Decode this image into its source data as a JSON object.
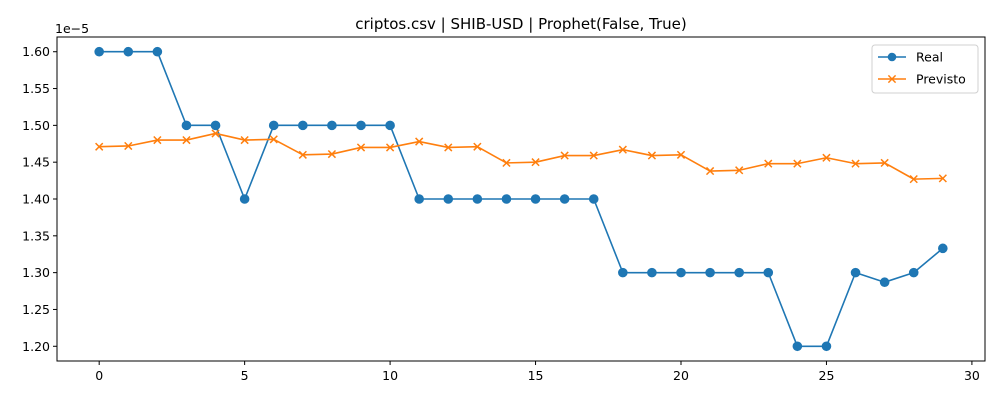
{
  "chart_data": {
    "type": "line",
    "title": "criptos.csv | SHIB-USD | Prophet(False, True)",
    "xlabel": "",
    "ylabel": "",
    "offset_label": "1e−5",
    "xlim": [
      -1.45,
      30.45
    ],
    "ylim": [
      1.18,
      1.62
    ],
    "x_ticks": [
      0,
      5,
      10,
      15,
      20,
      25,
      30
    ],
    "y_ticks": [
      1.2,
      1.25,
      1.3,
      1.35,
      1.4,
      1.45,
      1.5,
      1.55,
      1.6
    ],
    "y_tick_labels": [
      "1.20",
      "1.25",
      "1.30",
      "1.35",
      "1.40",
      "1.45",
      "1.50",
      "1.55",
      "1.60"
    ],
    "legend_position": "top-right",
    "grid": false,
    "x": [
      0,
      1,
      2,
      3,
      4,
      5,
      6,
      7,
      8,
      9,
      10,
      11,
      12,
      13,
      14,
      15,
      16,
      17,
      18,
      19,
      20,
      21,
      22,
      23,
      24,
      25,
      26,
      27,
      28,
      29
    ],
    "series": [
      {
        "name": "Real",
        "color": "#1f77b4",
        "marker": "circle",
        "values": [
          1.6,
          1.6,
          1.6,
          1.5,
          1.5,
          1.4,
          1.5,
          1.5,
          1.5,
          1.5,
          1.5,
          1.4,
          1.4,
          1.4,
          1.4,
          1.4,
          1.4,
          1.4,
          1.3,
          1.3,
          1.3,
          1.3,
          1.3,
          1.3,
          1.2,
          1.2,
          1.3,
          1.287,
          1.3,
          1.333
        ]
      },
      {
        "name": "Previsto",
        "color": "#ff7f0e",
        "marker": "x",
        "values": [
          1.471,
          1.472,
          1.48,
          1.48,
          1.489,
          1.48,
          1.481,
          1.46,
          1.461,
          1.47,
          1.47,
          1.478,
          1.47,
          1.471,
          1.449,
          1.45,
          1.459,
          1.459,
          1.467,
          1.459,
          1.46,
          1.438,
          1.439,
          1.448,
          1.448,
          1.456,
          1.448,
          1.449,
          1.427,
          1.428
        ]
      }
    ]
  }
}
